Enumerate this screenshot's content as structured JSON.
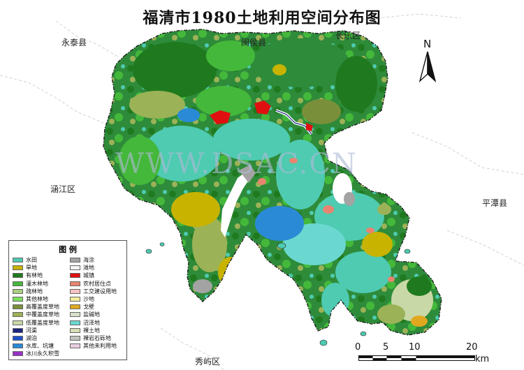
{
  "title": "福清市1980土地利用空间分布图",
  "places": {
    "yongtai": "永泰县",
    "minhou": "闽侯县",
    "changle": "长乐区",
    "hanjiang": "涵江区",
    "pingtan": "平潭县",
    "xiuyu": "秀屿区"
  },
  "watermark": "WWW.DSAC.CN",
  "north_label": "N",
  "legend": {
    "title": "图 例",
    "left": [
      {
        "label": "水田",
        "color": "#4ecbb1"
      },
      {
        "label": "旱地",
        "color": "#c7b300"
      },
      {
        "label": "有林地",
        "color": "#1f7a1f"
      },
      {
        "label": "灌木林地",
        "color": "#44b83a"
      },
      {
        "label": "疏林地",
        "color": "#a8cf80"
      },
      {
        "label": "其他林地",
        "color": "#7ae05e"
      },
      {
        "label": "高覆盖度草地",
        "color": "#7a8f3a"
      },
      {
        "label": "中覆盖度草地",
        "color": "#9cb257"
      },
      {
        "label": "低覆盖度草地",
        "color": "#c8d8a6"
      },
      {
        "label": "河渠",
        "color": "#1a237e"
      },
      {
        "label": "湖泊",
        "color": "#1e50c8"
      },
      {
        "label": "水库、坑塘",
        "color": "#2a8ad6"
      },
      {
        "label": "冰川永久积雪",
        "color": "#9a33c4"
      }
    ],
    "right": [
      {
        "label": "海涂",
        "color": "#a3a3a3"
      },
      {
        "label": "滩地",
        "color": "#f4f4f4"
      },
      {
        "label": "城镇",
        "color": "#e01010"
      },
      {
        "label": "农村居住点",
        "color": "#e8846f"
      },
      {
        "label": "工交建设用地",
        "color": "#f7c2c2"
      },
      {
        "label": "沙地",
        "color": "#f2ed9c"
      },
      {
        "label": "戈壁",
        "color": "#e0a81f"
      },
      {
        "label": "盐碱地",
        "color": "#d8e0c8"
      },
      {
        "label": "沼泽地",
        "color": "#6ad8d0"
      },
      {
        "label": "裸土地",
        "color": "#d8dcb4"
      },
      {
        "label": "裸岩石砾地",
        "color": "#c0c4bc"
      },
      {
        "label": "其他未利用地",
        "color": "#e8cfe0"
      }
    ]
  },
  "scale": {
    "ticks": [
      "0",
      "5",
      "10",
      "20"
    ],
    "unit": "km"
  }
}
